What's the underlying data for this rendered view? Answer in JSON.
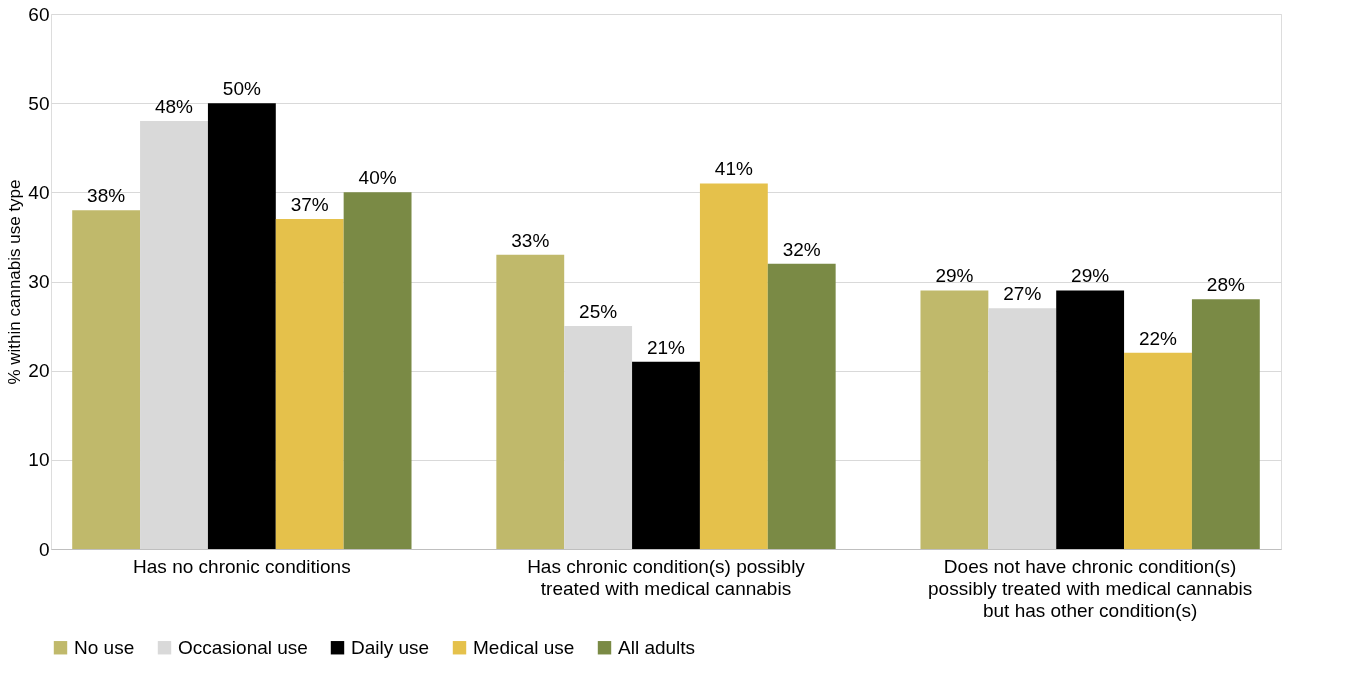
{
  "chart_data": {
    "type": "bar",
    "ylabel": "% within cannabis use type",
    "categories": [
      "Has no chronic conditions",
      "Has chronic condition(s) possibly treated with medical cannabis",
      "Does not have chronic condition(s) possibly treated with medical cannabis but has other condition(s)"
    ],
    "series": [
      {
        "name": "No use",
        "color": "#c0b96b",
        "values": [
          38,
          33,
          29
        ],
        "value_labels": [
          "38%",
          "33%",
          "29%"
        ]
      },
      {
        "name": "Occasional use",
        "color": "#d9d9d9",
        "values": [
          48,
          25,
          27
        ],
        "value_labels": [
          "48%",
          "25%",
          "27%"
        ]
      },
      {
        "name": "Daily use",
        "color": "#000000",
        "values": [
          50,
          21,
          29
        ],
        "value_labels": [
          "50%",
          "21%",
          "29%"
        ]
      },
      {
        "name": "Medical use",
        "color": "#e5c14b",
        "values": [
          37,
          41,
          22
        ],
        "value_labels": [
          "37%",
          "41%",
          "22%"
        ]
      },
      {
        "name": "All adults",
        "color": "#7a8a45",
        "values": [
          40,
          32,
          28
        ],
        "value_labels": [
          "40%",
          "32%",
          "28%"
        ]
      }
    ],
    "ylim": [
      0,
      60
    ],
    "yticks": [
      0,
      10,
      20,
      30,
      40,
      50,
      60
    ],
    "grid": "y",
    "legend": "bottom"
  }
}
